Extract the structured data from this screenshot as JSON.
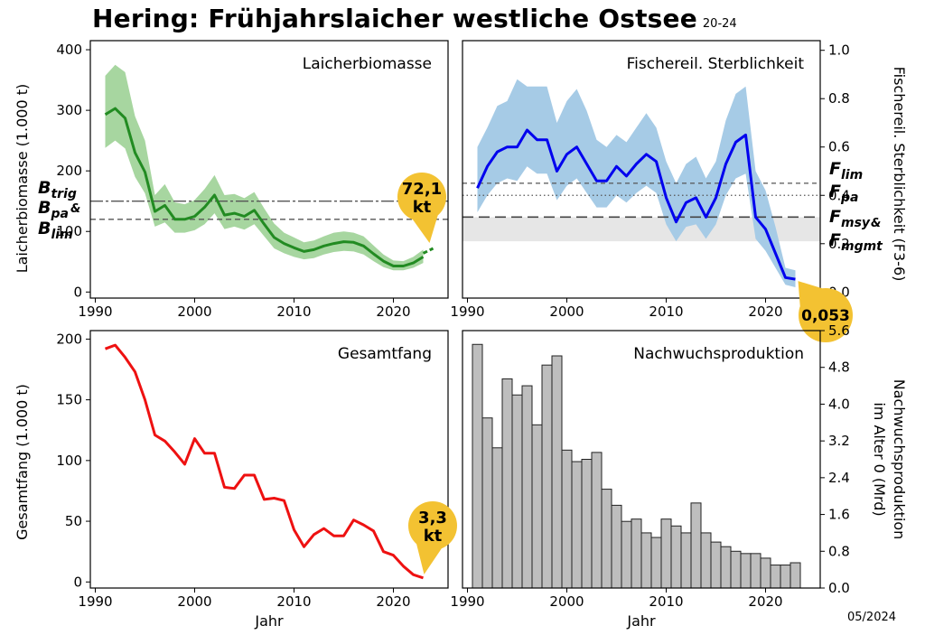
{
  "title": "Hering: Frühjahrslaicher westliche Ostsee",
  "title_suffix": "20-24",
  "date_stamp": "05/2024",
  "x_label": "Jahr",
  "chart_data": [
    {
      "id": "ssb",
      "type": "line",
      "panel_title": "Laicherbiomasse",
      "ylabel": "Laicherbiomasse (1.000 t)",
      "xlim": [
        1989.5,
        2025.5
      ],
      "ylim": [
        -10,
        415
      ],
      "xticks": [
        1990,
        2000,
        2010,
        2020
      ],
      "yticks": [
        0,
        100,
        200,
        300,
        400
      ],
      "color": "#228B22",
      "band_color": "#a7d6a0",
      "x": [
        1991,
        1992,
        1993,
        1994,
        1995,
        1996,
        1997,
        1998,
        1999,
        2000,
        2001,
        2002,
        2003,
        2004,
        2005,
        2006,
        2007,
        2008,
        2009,
        2010,
        2011,
        2012,
        2013,
        2014,
        2015,
        2016,
        2017,
        2018,
        2019,
        2020,
        2021,
        2022,
        2023
      ],
      "values": [
        293,
        303,
        287,
        230,
        198,
        133,
        143,
        120,
        120,
        125,
        140,
        160,
        127,
        130,
        125,
        135,
        112,
        90,
        80,
        73,
        67,
        70,
        76,
        80,
        83,
        82,
        76,
        63,
        51,
        43,
        43,
        48,
        58
      ],
      "lower": [
        238,
        250,
        237,
        190,
        163,
        108,
        115,
        98,
        98,
        102,
        112,
        130,
        104,
        108,
        103,
        112,
        92,
        72,
        64,
        58,
        54,
        56,
        62,
        66,
        68,
        67,
        62,
        51,
        41,
        36,
        36,
        40,
        48
      ],
      "upper": [
        357,
        375,
        363,
        290,
        250,
        160,
        178,
        148,
        145,
        152,
        170,
        193,
        160,
        162,
        155,
        165,
        138,
        113,
        98,
        90,
        82,
        85,
        92,
        98,
        100,
        98,
        92,
        77,
        62,
        52,
        51,
        58,
        70
      ],
      "forecast_x": [
        2023,
        2024
      ],
      "forecast_values": [
        64,
        72
      ],
      "ref_lines": [
        {
          "name": "B_trig",
          "value": 150,
          "style": "dashdot"
        },
        {
          "name": "B_lim",
          "value": 120,
          "style": "dashed"
        }
      ],
      "ref_labels": [
        "B",
        "trig",
        "B",
        "pa",
        "&",
        "B",
        "lim"
      ],
      "callout": {
        "line1": "72,1",
        "line2": "kt",
        "year": 2024,
        "value": 72
      }
    },
    {
      "id": "fishing",
      "type": "line",
      "panel_title": "Fischereil. Sterblichkeit",
      "ylabel": "Fischereil. Sterblichkeit (F3-6)",
      "xlim": [
        1989.5,
        2025.5
      ],
      "ylim": [
        -0.025,
        1.04
      ],
      "xticks": [
        1990,
        2000,
        2010,
        2020
      ],
      "yticks": [
        0.0,
        0.2,
        0.4,
        0.6,
        0.8,
        1.0
      ],
      "ytick_labels": [
        "0.0",
        "0.2",
        "0.4",
        "0.6",
        "0.8",
        "1.0"
      ],
      "color": "#0000ee",
      "band_color": "#a6cbe6",
      "x": [
        1991,
        1992,
        1993,
        1994,
        1995,
        1996,
        1997,
        1998,
        1999,
        2000,
        2001,
        2002,
        2003,
        2004,
        2005,
        2006,
        2007,
        2008,
        2009,
        2010,
        2011,
        2012,
        2013,
        2014,
        2015,
        2016,
        2017,
        2018,
        2019,
        2020,
        2021,
        2022,
        2023
      ],
      "values": [
        0.43,
        0.52,
        0.58,
        0.6,
        0.6,
        0.67,
        0.63,
        0.63,
        0.5,
        0.57,
        0.6,
        0.53,
        0.46,
        0.46,
        0.52,
        0.48,
        0.53,
        0.57,
        0.54,
        0.39,
        0.29,
        0.37,
        0.39,
        0.31,
        0.39,
        0.53,
        0.62,
        0.65,
        0.31,
        0.26,
        0.16,
        0.06,
        0.053
      ],
      "lower": [
        0.33,
        0.4,
        0.45,
        0.47,
        0.46,
        0.52,
        0.49,
        0.49,
        0.38,
        0.44,
        0.47,
        0.41,
        0.35,
        0.35,
        0.4,
        0.37,
        0.41,
        0.44,
        0.41,
        0.28,
        0.21,
        0.27,
        0.28,
        0.22,
        0.28,
        0.4,
        0.47,
        0.49,
        0.22,
        0.17,
        0.1,
        0.03,
        0.02
      ],
      "upper": [
        0.6,
        0.68,
        0.77,
        0.79,
        0.88,
        0.85,
        0.85,
        0.85,
        0.7,
        0.79,
        0.84,
        0.75,
        0.63,
        0.6,
        0.65,
        0.62,
        0.68,
        0.74,
        0.68,
        0.54,
        0.45,
        0.53,
        0.56,
        0.47,
        0.54,
        0.71,
        0.82,
        0.85,
        0.5,
        0.42,
        0.27,
        0.1,
        0.09
      ],
      "shaded_range": [
        0.21,
        0.31
      ],
      "ref_lines": [
        {
          "name": "F_lim",
          "value": 0.45,
          "style": "dashed"
        },
        {
          "name": "F_pa",
          "value": 0.4,
          "style": "dotted"
        },
        {
          "name": "F_msy & F_mgmt",
          "value": 0.31,
          "style": "longdash"
        }
      ],
      "ref_labels": [
        "F",
        "lim",
        "F",
        "pa",
        "F",
        "msy",
        "&",
        "F",
        "mgmt"
      ],
      "callout": {
        "line1": "0,053",
        "year": 2023,
        "value": 0.053
      }
    },
    {
      "id": "catch",
      "type": "line",
      "panel_title": "Gesamtfang",
      "ylabel": "Gesamtfang (1.000 t)",
      "xlim": [
        1989.5,
        2025.5
      ],
      "ylim": [
        -5,
        207
      ],
      "xticks": [
        1990,
        2000,
        2010,
        2020
      ],
      "yticks": [
        0,
        50,
        100,
        150,
        200
      ],
      "color": "#ee1111",
      "x": [
        1991,
        1992,
        1993,
        1994,
        1995,
        1996,
        1997,
        1998,
        1999,
        2000,
        2001,
        2002,
        2003,
        2004,
        2005,
        2006,
        2007,
        2008,
        2009,
        2010,
        2011,
        2012,
        2013,
        2014,
        2015,
        2016,
        2017,
        2018,
        2019,
        2020,
        2021,
        2022,
        2023
      ],
      "values": [
        192,
        195,
        185,
        173,
        150,
        121,
        116,
        107,
        97,
        118,
        106,
        106,
        78,
        77,
        88,
        88,
        68,
        69,
        67,
        43,
        29,
        39,
        44,
        38,
        38,
        51,
        47,
        42,
        25,
        22,
        13,
        6,
        3.3
      ],
      "callout": {
        "line1": "3,3",
        "line2": "kt",
        "year": 2023,
        "value": 3.3
      }
    },
    {
      "id": "recruitment",
      "type": "bar",
      "panel_title": "Nachwuchsproduktion",
      "ylabel_lines": [
        "Nachwuchsproduktion",
        "im Alter 0 (Mrd)"
      ],
      "xlim": [
        1989.5,
        2025.5
      ],
      "ylim": [
        0,
        5.6
      ],
      "xticks": [
        1990,
        2000,
        2010,
        2020
      ],
      "yticks": [
        0.0,
        0.8,
        1.6,
        2.4,
        3.2,
        4.0,
        4.8,
        5.6
      ],
      "ytick_labels": [
        "0.0",
        "0.8",
        "1.6",
        "2.4",
        "3.2",
        "4.0",
        "4.8",
        "5.6"
      ],
      "color": "#bebebe",
      "x": [
        1991,
        1992,
        1993,
        1994,
        1995,
        1996,
        1997,
        1998,
        1999,
        2000,
        2001,
        2002,
        2003,
        2004,
        2005,
        2006,
        2007,
        2008,
        2009,
        2010,
        2011,
        2012,
        2013,
        2014,
        2015,
        2016,
        2017,
        2018,
        2019,
        2020,
        2021,
        2022,
        2023
      ],
      "values": [
        5.3,
        3.7,
        3.05,
        4.55,
        4.2,
        4.4,
        3.55,
        4.85,
        5.05,
        3.0,
        2.75,
        2.8,
        2.95,
        2.15,
        1.8,
        1.45,
        1.5,
        1.2,
        1.1,
        1.5,
        1.35,
        1.2,
        1.85,
        1.2,
        1.0,
        0.9,
        0.8,
        0.75,
        0.75,
        0.65,
        0.5,
        0.5,
        0.55
      ]
    }
  ]
}
